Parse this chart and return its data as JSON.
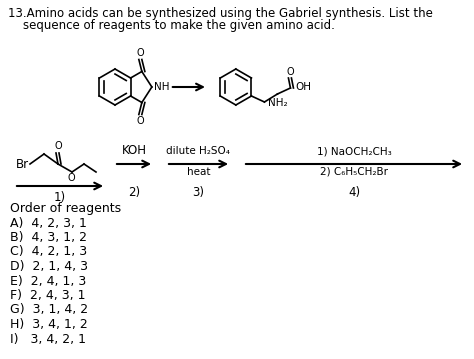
{
  "title_line1": "13.Amino acids can be synthesized using the Gabriel synthesis. List the",
  "title_line2": "    sequence of reagents to make the given amino acid.",
  "choices": [
    "Order of reagents",
    "A)  4, 2, 3, 1",
    "B)  4, 3, 1, 2",
    "C)  4, 2, 1, 3",
    "D)  2, 1, 4, 3",
    "E)  2, 4, 1, 3",
    "F)  2, 4, 3, 1",
    "G)  3, 1, 4, 2",
    "H)  3, 4, 1, 2",
    "I)   3, 4, 2, 1"
  ],
  "reagent_labels": [
    "1)",
    "2)",
    "3)",
    "4)"
  ],
  "bg_color": "#ffffff",
  "text_color": "#000000",
  "font_size": 8.5,
  "title_font_size": 8.5
}
